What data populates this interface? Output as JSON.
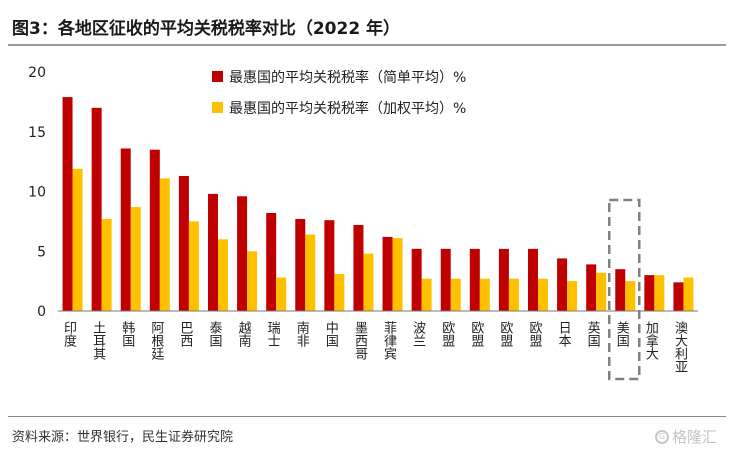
{
  "header": {
    "title": "图3：各地区征收的平均关税税率对比（2022 年）"
  },
  "footer": {
    "source": "资料来源：世界银行，民生证券研究院",
    "watermark": "格隆汇"
  },
  "colors": {
    "simple": "#c00000",
    "weighted": "#ffc000",
    "highlight_box": "#808080"
  },
  "chart_data": {
    "type": "bar",
    "title": "图3：各地区征收的平均关税税率对比（2022 年）",
    "categories": [
      "印度",
      "土耳其",
      "韩国",
      "阿根廷",
      "巴西",
      "泰国",
      "越南",
      "瑞士",
      "南非",
      "中国",
      "墨西哥",
      "菲律宾",
      "波兰",
      "欧盟",
      "欧盟",
      "欧盟",
      "欧盟",
      "日本",
      "英国",
      "美国",
      "加拿大",
      "澳大利亚"
    ],
    "series": [
      {
        "name": "最惠国的平均关税税率（简单平均）%",
        "color": "#c00000",
        "values": [
          17.9,
          17.0,
          13.6,
          13.5,
          11.3,
          9.8,
          9.6,
          8.2,
          7.7,
          7.6,
          7.2,
          6.2,
          5.2,
          5.2,
          5.2,
          5.2,
          5.2,
          4.4,
          3.9,
          3.5,
          3.0,
          2.4
        ]
      },
      {
        "name": "最惠国的平均关税税率（加权平均）%",
        "color": "#ffc000",
        "values": [
          11.9,
          7.7,
          8.7,
          11.1,
          7.5,
          6.0,
          5.0,
          2.8,
          6.4,
          3.1,
          4.8,
          6.1,
          2.7,
          2.7,
          2.7,
          2.7,
          2.7,
          2.5,
          3.2,
          2.5,
          3.0,
          2.8
        ]
      }
    ],
    "ylim": [
      0,
      20
    ],
    "yticks": [
      0,
      5,
      10,
      15,
      20
    ],
    "xlabel": "",
    "ylabel": "",
    "grid": false,
    "legend_position": "top-center",
    "highlight_category": "美国"
  }
}
